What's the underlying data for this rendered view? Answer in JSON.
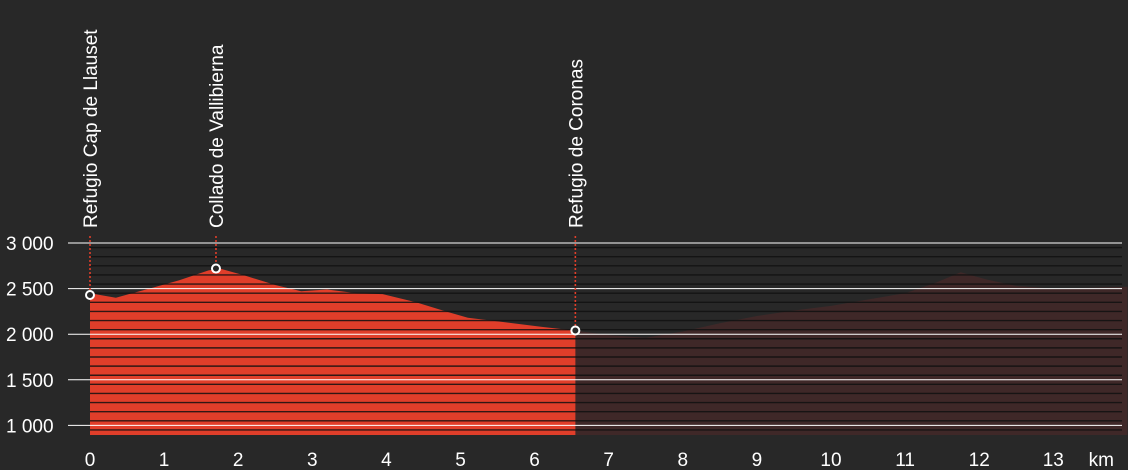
{
  "chart_data": {
    "type": "area",
    "title": "",
    "xlabel": "",
    "ylabel": "",
    "x_unit": "km",
    "xlim": [
      0,
      14
    ],
    "ylim": [
      850,
      3000
    ],
    "x_ticks": [
      {
        "value": 0,
        "label": "0"
      },
      {
        "value": 1,
        "label": "1"
      },
      {
        "value": 2,
        "label": "2"
      },
      {
        "value": 3,
        "label": "3"
      },
      {
        "value": 4,
        "label": "4"
      },
      {
        "value": 5,
        "label": "5"
      },
      {
        "value": 6,
        "label": "6"
      },
      {
        "value": 7,
        "label": "7"
      },
      {
        "value": 8,
        "label": "8"
      },
      {
        "value": 9,
        "label": "9"
      },
      {
        "value": 10,
        "label": "10"
      },
      {
        "value": 11,
        "label": "11"
      },
      {
        "value": 12,
        "label": "12"
      },
      {
        "value": 13,
        "label": "13"
      }
    ],
    "y_ticks": [
      {
        "value": 1000,
        "label": "1 000"
      },
      {
        "value": 1500,
        "label": "1 500"
      },
      {
        "value": 2000,
        "label": "2 000"
      },
      {
        "value": 2500,
        "label": "2 500"
      },
      {
        "value": 3000,
        "label": "3 000"
      }
    ],
    "minor_gridlines_per_major": 5,
    "highlighted_until_km": 6.55,
    "series": [
      {
        "points": [
          [
            0,
            2450
          ],
          [
            0.35,
            2400
          ],
          [
            0.8,
            2500
          ],
          [
            1.2,
            2590
          ],
          [
            1.6,
            2700
          ],
          [
            1.75,
            2720
          ],
          [
            2.1,
            2640
          ],
          [
            2.5,
            2540
          ],
          [
            2.85,
            2470
          ],
          [
            3.2,
            2490
          ],
          [
            3.6,
            2450
          ],
          [
            3.95,
            2440
          ],
          [
            4.4,
            2350
          ],
          [
            4.8,
            2250
          ],
          [
            5.1,
            2180
          ],
          [
            5.6,
            2130
          ],
          [
            6.1,
            2080
          ],
          [
            6.55,
            2040
          ],
          [
            7.0,
            1990
          ],
          [
            7.5,
            1960
          ],
          [
            8.0,
            2030
          ],
          [
            8.5,
            2120
          ],
          [
            9.0,
            2200
          ],
          [
            9.5,
            2260
          ],
          [
            10.0,
            2310
          ],
          [
            10.5,
            2380
          ],
          [
            11.0,
            2450
          ],
          [
            11.4,
            2560
          ],
          [
            11.75,
            2680
          ],
          [
            12.1,
            2600
          ],
          [
            12.5,
            2530
          ],
          [
            13.0,
            2500
          ],
          [
            13.5,
            2510
          ],
          [
            14.0,
            2520
          ]
        ]
      }
    ],
    "waypoints": [
      {
        "name": "Refugio Cap de Llauset",
        "km": 0,
        "elevation": 2430
      },
      {
        "name": "Collado de Vallibierna",
        "km": 1.7,
        "elevation": 2720
      },
      {
        "name": "Refugio de Coronas",
        "km": 6.55,
        "elevation": 2040
      }
    ],
    "colors": {
      "background": "#282828",
      "highlight_fill": "#e03e2a",
      "rest_fill": "#3f2828",
      "grid_major": "#ffffff",
      "grid_minor": "#101010",
      "waypoint_line": "#e03e2a",
      "text": "#ffffff"
    }
  }
}
